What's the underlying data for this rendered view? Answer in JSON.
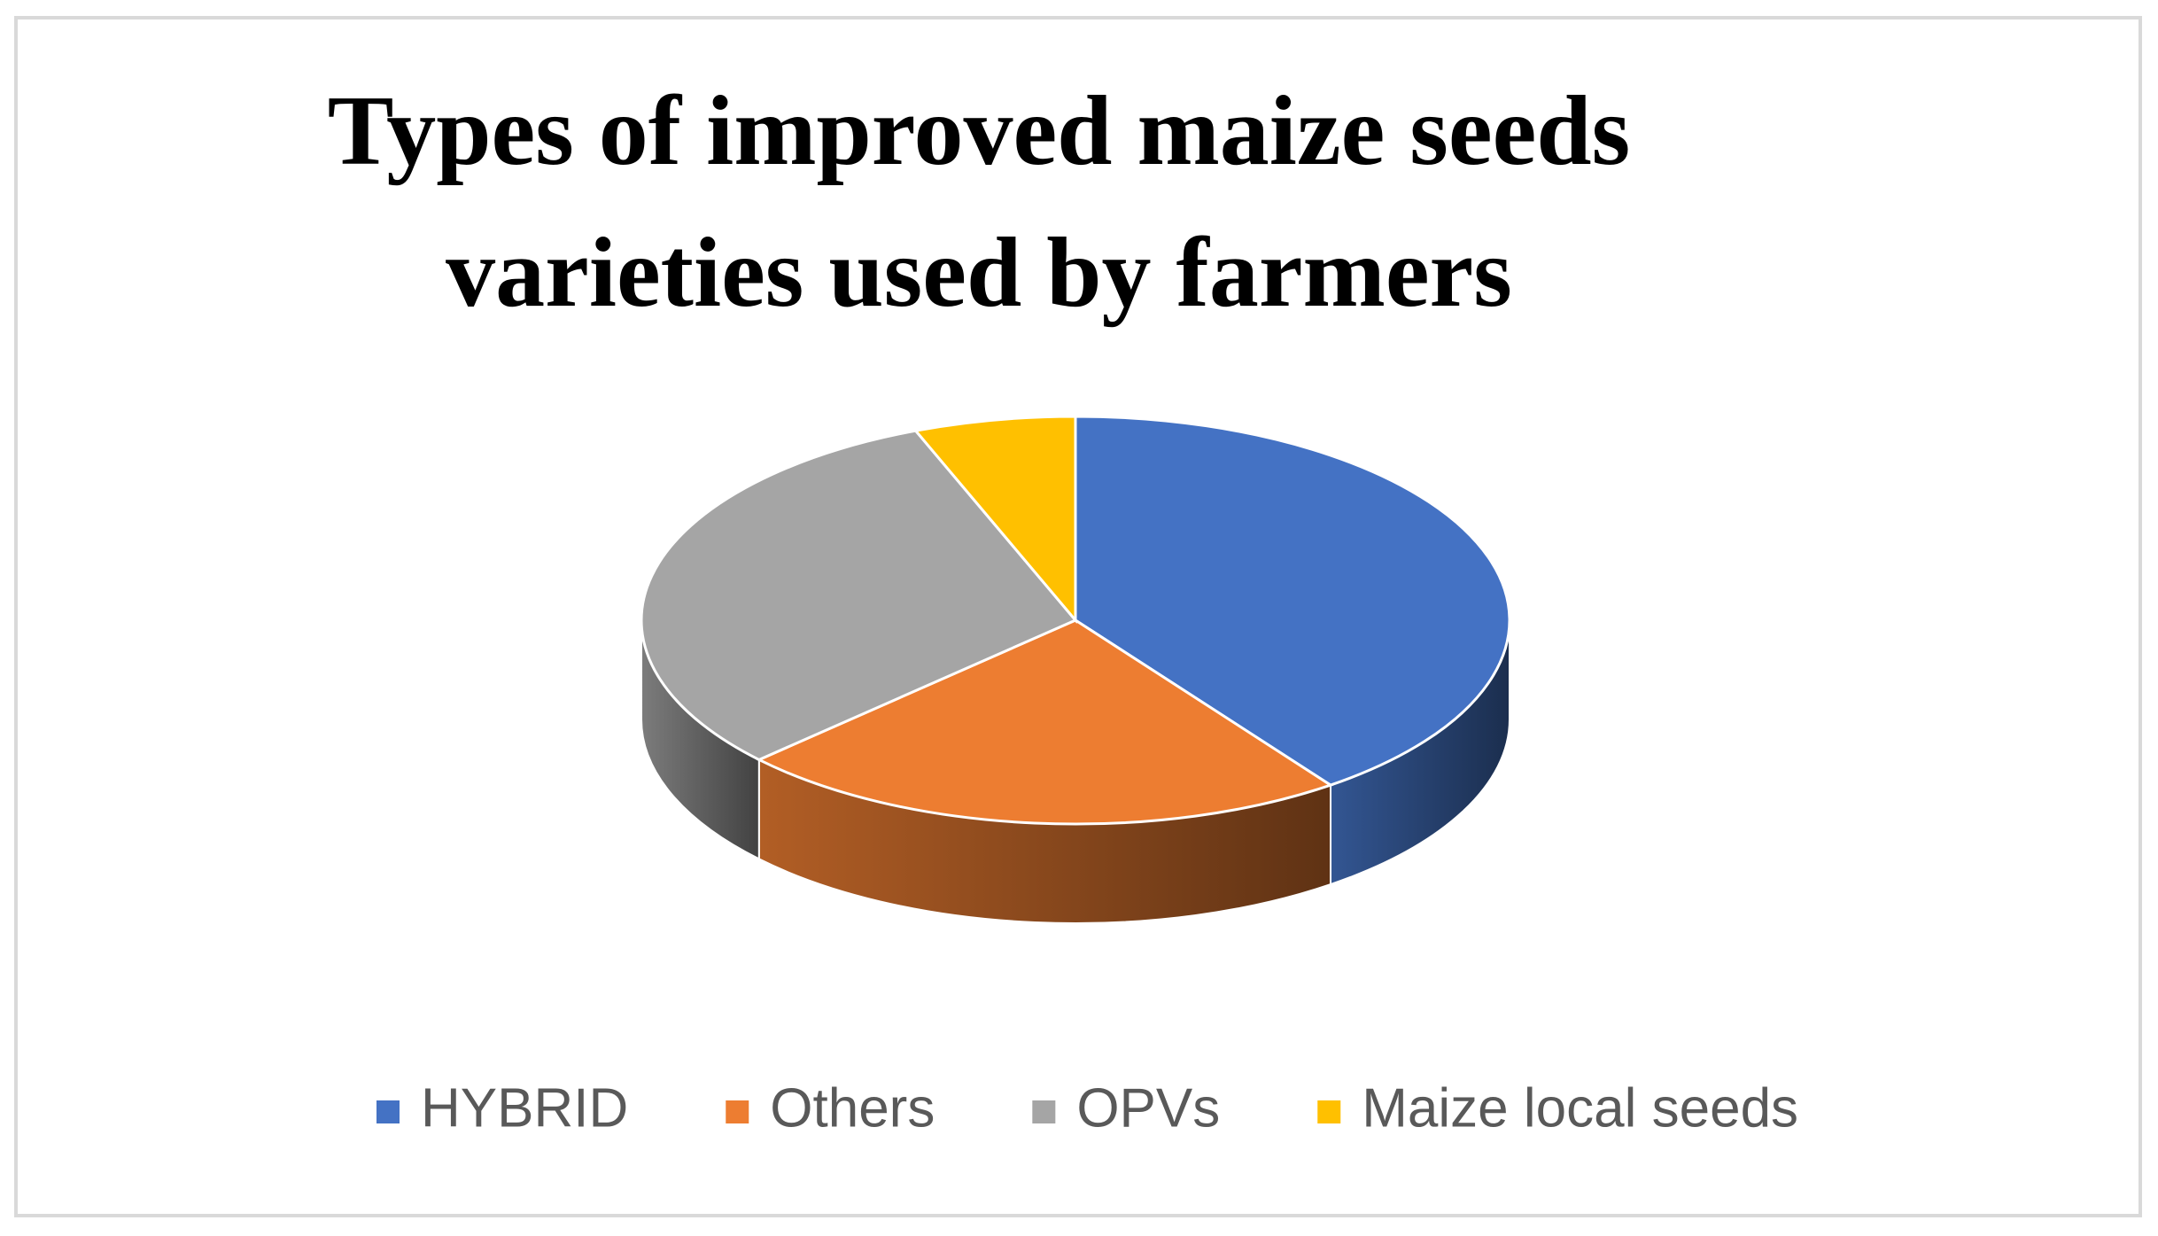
{
  "chart_data": {
    "type": "pie3d",
    "title": [
      "Types of improved maize seeds",
      "varieties used by farmers"
    ],
    "categories": [
      "HYBRID",
      "Others",
      "OPVs",
      "Maize local seeds"
    ],
    "values": [
      40,
      23,
      31,
      6
    ],
    "colors": [
      "#4472c4",
      "#ed7d31",
      "#a5a5a5",
      "#ffc000"
    ],
    "legend": "bottom"
  }
}
